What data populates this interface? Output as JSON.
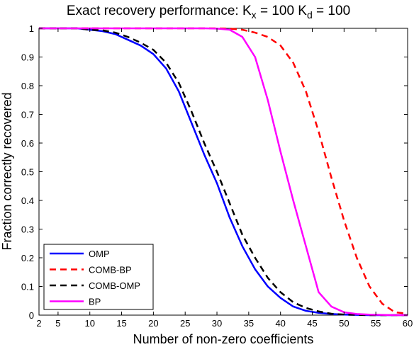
{
  "chart_data": {
    "type": "line",
    "title": {
      "prefix": "Exact recovery performance: K",
      "sub1": "x",
      "middle": " = 100 K",
      "sub2": "d",
      "suffix": " = 100"
    },
    "xlabel": "Number of non-zero coefficients",
    "ylabel": "Fraction correctly recovered",
    "xlim": [
      2,
      60
    ],
    "ylim": [
      0,
      1
    ],
    "xticks": [
      2,
      5,
      10,
      15,
      20,
      25,
      30,
      35,
      40,
      45,
      50,
      55,
      60
    ],
    "yticks": [
      0,
      0.1,
      0.2,
      0.3,
      0.4,
      0.5,
      0.6,
      0.7,
      0.8,
      0.9,
      1
    ],
    "ytick_labels": [
      "0",
      "0.1",
      "0.2",
      "0.3",
      "0.4",
      "0.5",
      "0.6",
      "0.7",
      "0.8",
      "0.9",
      "1"
    ],
    "grid": false,
    "legend_position": "bottom-left",
    "x": [
      2,
      4,
      6,
      8,
      10,
      12,
      14,
      16,
      18,
      20,
      22,
      24,
      26,
      28,
      30,
      32,
      34,
      36,
      38,
      40,
      42,
      44,
      46,
      48,
      50,
      52,
      54,
      56,
      58,
      60
    ],
    "series": [
      {
        "name": "OMP",
        "color": "#0000ff",
        "style": "solid",
        "values": [
          1,
          1,
          1,
          1,
          0.995,
          0.99,
          0.98,
          0.96,
          0.94,
          0.91,
          0.86,
          0.78,
          0.67,
          0.56,
          0.46,
          0.34,
          0.24,
          0.16,
          0.1,
          0.06,
          0.03,
          0.015,
          0.008,
          0.004,
          0.002,
          0.001,
          0,
          0,
          0,
          0
        ]
      },
      {
        "name": "COMB-BP",
        "color": "#ff0000",
        "style": "dashed",
        "values": [
          1,
          1,
          1,
          1,
          1,
          1,
          1,
          1,
          1,
          1,
          1,
          1,
          1,
          1,
          1,
          0.999,
          0.995,
          0.985,
          0.97,
          0.94,
          0.88,
          0.78,
          0.64,
          0.48,
          0.33,
          0.2,
          0.1,
          0.04,
          0.01,
          0.005
        ]
      },
      {
        "name": "COMB-OMP",
        "color": "#000000",
        "style": "dashed",
        "values": [
          1,
          1,
          1,
          1,
          0.995,
          0.993,
          0.985,
          0.97,
          0.95,
          0.925,
          0.88,
          0.81,
          0.71,
          0.6,
          0.5,
          0.39,
          0.28,
          0.2,
          0.13,
          0.08,
          0.045,
          0.025,
          0.013,
          0.005,
          0.002,
          0.001,
          0,
          0,
          0,
          0
        ]
      },
      {
        "name": "BP",
        "color": "#ff00ff",
        "style": "solid",
        "values": [
          1,
          1,
          1,
          1,
          1,
          1,
          1,
          1,
          1,
          1,
          1,
          1,
          1,
          1,
          0.999,
          0.995,
          0.97,
          0.9,
          0.75,
          0.57,
          0.4,
          0.24,
          0.08,
          0.03,
          0.01,
          0.004,
          0.002,
          0.001,
          0,
          0
        ]
      }
    ]
  }
}
